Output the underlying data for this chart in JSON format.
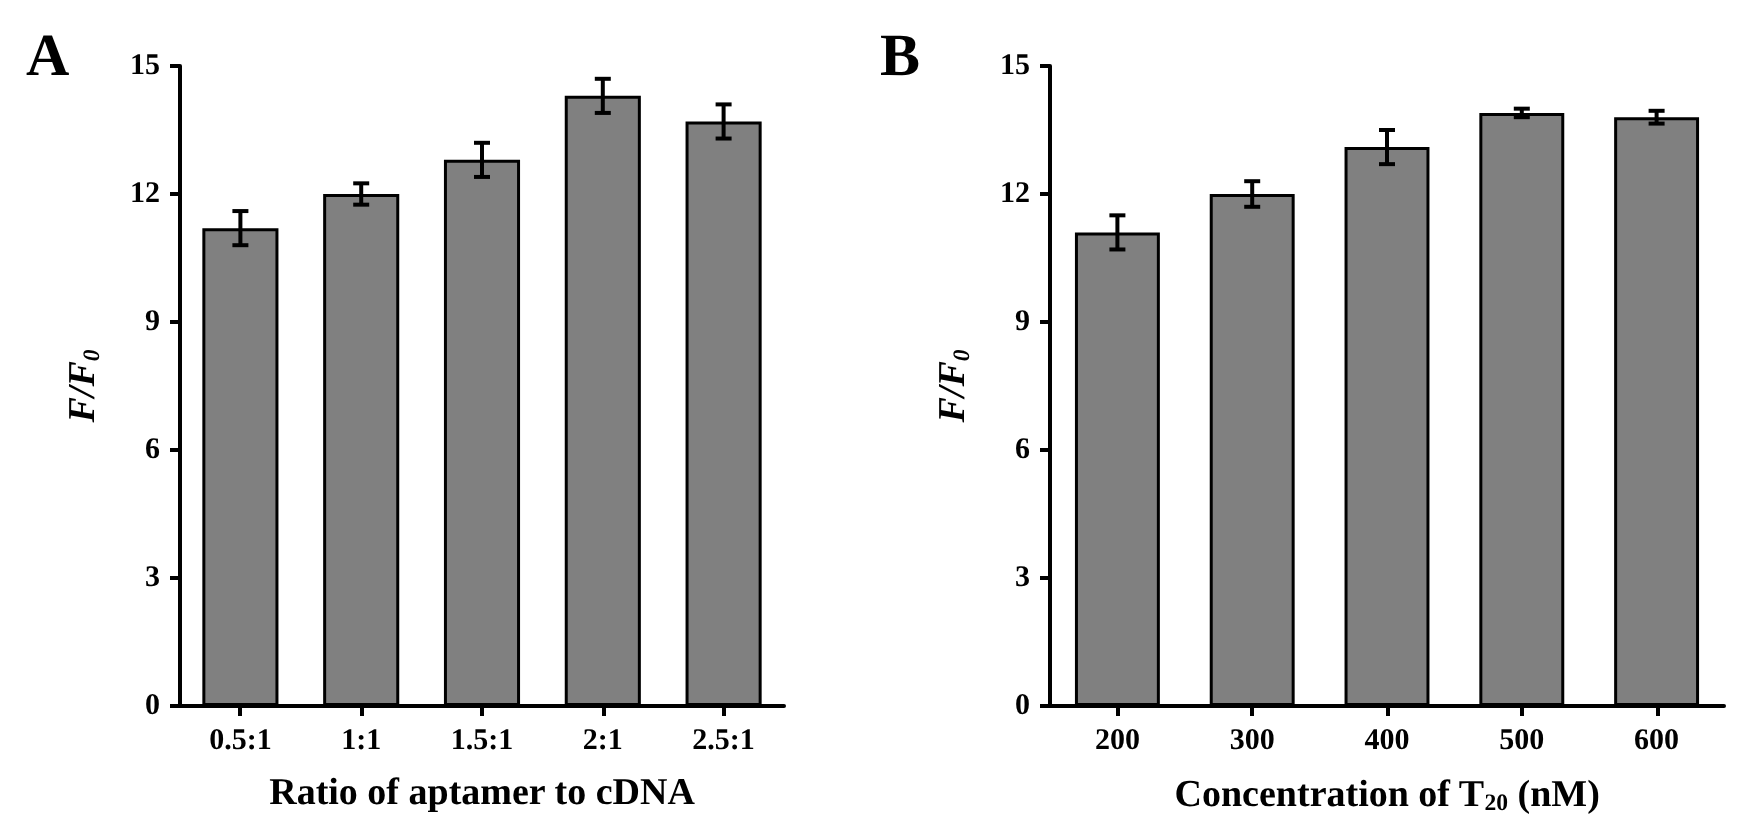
{
  "chart_data": [
    {
      "type": "bar",
      "title": "A",
      "xlabel": "Ratio of aptamer to cDNA",
      "ylabel": "F/F$_{0}$",
      "categories": [
        "0.5:1",
        "1:1",
        "1.5:1",
        "2:1",
        "2.5:1"
      ],
      "values": [
        11.2,
        12.0,
        12.8,
        14.3,
        13.7
      ],
      "errors": [
        0.4,
        0.25,
        0.4,
        0.4,
        0.4
      ],
      "color": "#808080",
      "ylim": [
        0,
        15
      ],
      "yticks": [
        0,
        3,
        6,
        9,
        12,
        15
      ],
      "grid": false
    },
    {
      "type": "bar",
      "title": "B",
      "xlabel": "Concentration of T$_{20}$ (nM)",
      "ylabel": "F/F$_{0}$",
      "categories": [
        "200",
        "300",
        "400",
        "500",
        "600"
      ],
      "values": [
        11.1,
        12.0,
        13.1,
        13.9,
        13.8
      ],
      "errors": [
        0.4,
        0.3,
        0.4,
        0.1,
        0.15
      ],
      "color": "#808080",
      "ylim": [
        0,
        15
      ],
      "yticks": [
        0,
        3,
        6,
        9,
        12,
        15
      ],
      "grid": false
    }
  ]
}
